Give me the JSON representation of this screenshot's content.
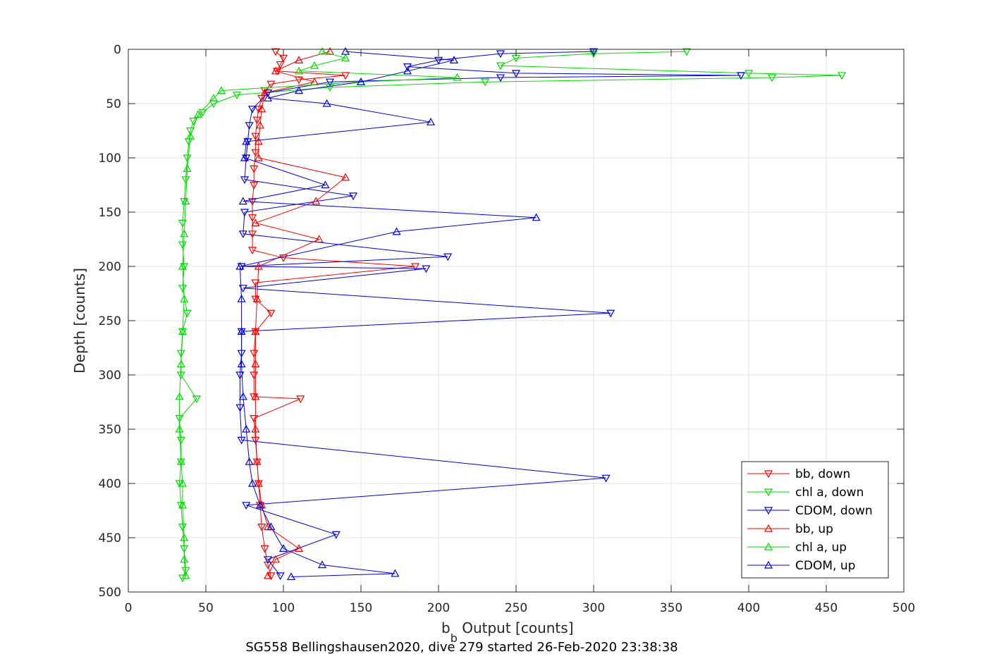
{
  "caption": "SG558 Bellingshausen2020, dive 279 started 26-Feb-2020 23:38:38",
  "chart_data": {
    "type": "line",
    "title": "",
    "xlabel_main": "b",
    "xlabel_sub": "b",
    "xlabel_rest": " Output [counts]",
    "ylabel": "Depth [counts]",
    "xlim": [
      0,
      500
    ],
    "ylim": [
      0,
      500
    ],
    "y_reversed": true,
    "grid": true,
    "x_ticks": [
      "0",
      "50",
      "100",
      "150",
      "200",
      "250",
      "300",
      "350",
      "400",
      "450",
      "500"
    ],
    "y_ticks": [
      "0",
      "50",
      "100",
      "150",
      "200",
      "250",
      "300",
      "350",
      "400",
      "450",
      "500"
    ],
    "legend_position": "bottom-right",
    "series": [
      {
        "name": "bb, down",
        "color": "#ff0000",
        "marker": "triangle-down",
        "depth": [
          2,
          8,
          14,
          20,
          24,
          28,
          32,
          38,
          45,
          55,
          65,
          80,
          95,
          110,
          125,
          140,
          155,
          170,
          185,
          192,
          200,
          215,
          230,
          243,
          260,
          280,
          300,
          320,
          322,
          340,
          360,
          380,
          400,
          420,
          440,
          460,
          475,
          485
        ],
        "x": [
          95,
          100,
          98,
          96,
          140,
          110,
          92,
          88,
          86,
          84,
          83,
          82,
          82,
          81,
          81,
          80,
          80,
          80,
          80,
          100,
          185,
          82,
          82,
          92,
          82,
          81,
          81,
          81,
          111,
          81,
          82,
          83,
          84,
          85,
          86,
          88,
          90,
          92
        ]
      },
      {
        "name": "chl a, down",
        "color": "#00dd00",
        "marker": "triangle-down",
        "depth": [
          2,
          4,
          8,
          15,
          22,
          24,
          26,
          30,
          35,
          42,
          50,
          58,
          66,
          75,
          85,
          100,
          120,
          140,
          160,
          180,
          200,
          220,
          243,
          260,
          280,
          300,
          322,
          340,
          360,
          380,
          400,
          420,
          440,
          460,
          480,
          487
        ],
        "x": [
          360,
          300,
          250,
          240,
          400,
          460,
          415,
          230,
          130,
          70,
          55,
          48,
          42,
          40,
          39,
          38,
          37,
          36,
          35,
          35,
          36,
          35,
          38,
          35,
          34,
          34,
          44,
          33,
          34,
          34,
          33,
          34,
          35,
          36,
          37,
          35
        ]
      },
      {
        "name": "CDOM, down",
        "color": "#0000dd",
        "marker": "triangle-down",
        "depth": [
          2,
          4,
          10,
          16,
          22,
          24,
          26,
          30,
          40,
          55,
          70,
          85,
          100,
          120,
          135,
          150,
          170,
          191,
          200,
          202,
          220,
          243,
          260,
          280,
          300,
          330,
          360,
          395,
          420,
          447,
          470,
          485
        ],
        "x": [
          300,
          240,
          200,
          180,
          250,
          395,
          240,
          130,
          90,
          80,
          78,
          77,
          76,
          75,
          145,
          75,
          74,
          206,
          73,
          192,
          74,
          311,
          73,
          73,
          72,
          72,
          73,
          308,
          76,
          134,
          90,
          98
        ]
      },
      {
        "name": "bb, up",
        "color": "#ff0000",
        "marker": "triangle-up",
        "depth": [
          485,
          470,
          460,
          440,
          420,
          400,
          380,
          350,
          320,
          290,
          260,
          230,
          200,
          175,
          160,
          140,
          118,
          100,
          85,
          70,
          55,
          40,
          30,
          20,
          10,
          2
        ],
        "x": [
          90,
          95,
          110,
          90,
          86,
          84,
          83,
          82,
          82,
          82,
          82,
          83,
          84,
          123,
          82,
          121,
          140,
          84,
          84,
          85,
          86,
          88,
          120,
          95,
          110,
          130
        ]
      },
      {
        "name": "chl a, up",
        "color": "#00dd00",
        "marker": "triangle-up",
        "depth": [
          485,
          470,
          450,
          420,
          400,
          380,
          350,
          320,
          290,
          260,
          230,
          200,
          170,
          140,
          110,
          80,
          60,
          45,
          38,
          30,
          26,
          20,
          15,
          8,
          2
        ],
        "x": [
          37,
          36,
          36,
          35,
          35,
          34,
          33,
          33,
          34,
          35,
          36,
          35,
          36,
          37,
          38,
          40,
          45,
          55,
          60,
          150,
          212,
          110,
          120,
          140,
          125
        ]
      },
      {
        "name": "CDOM, up",
        "color": "#0000dd",
        "marker": "triangle-up",
        "depth": [
          486,
          483,
          475,
          460,
          440,
          420,
          400,
          380,
          350,
          320,
          290,
          260,
          230,
          200,
          168,
          155,
          140,
          125,
          100,
          85,
          67,
          50,
          45,
          38,
          30,
          20,
          10,
          2
        ],
        "x": [
          105,
          172,
          125,
          100,
          92,
          85,
          80,
          78,
          76,
          74,
          73,
          73,
          73,
          72,
          173,
          263,
          74,
          127,
          75,
          76,
          195,
          128,
          90,
          110,
          150,
          180,
          210,
          140
        ]
      }
    ]
  }
}
